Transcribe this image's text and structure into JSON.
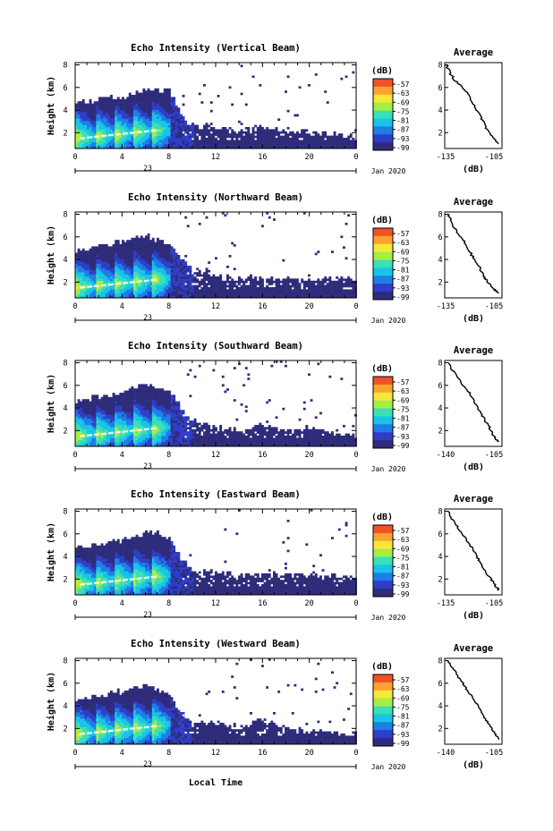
{
  "chart_data": {
    "type": "heatmap",
    "xlabel": "Local Time",
    "colorbar": {
      "unit": "(dB)",
      "ticks": [
        "-57",
        "-63",
        "-69",
        "-75",
        "-81",
        "-87",
        "-93",
        "-99"
      ],
      "vmin": -99,
      "vmax": -57,
      "colors": [
        "#2e2c7a",
        "#2e3ec8",
        "#1e7ee6",
        "#18c4e8",
        "#3ae0b6",
        "#a6ee44",
        "#f6e838",
        "#fba330",
        "#f05228"
      ]
    },
    "x_tick_labels": [
      "0",
      "4",
      "8",
      "12",
      "16",
      "20",
      "0"
    ],
    "x_ticks_hours": [
      0,
      4,
      8,
      12,
      16,
      20,
      24
    ],
    "date_label_day": "23",
    "date_label_month": "Jan 2020",
    "y_tick_labels": [
      "2",
      "4",
      "6",
      "8"
    ],
    "ylabel": "Height (km)",
    "panels": [
      {
        "title": "Echo Intensity (Vertical Beam)",
        "coverage": {
          "hours": [
            0,
            2,
            4,
            6,
            8,
            9,
            10,
            12,
            14,
            16,
            18,
            20,
            22,
            24
          ],
          "top_km": [
            4.7,
            5.1,
            5.3,
            6.0,
            5.8,
            3.5,
            2.6,
            2.5,
            2.4,
            2.5,
            2.2,
            2.1,
            2.0,
            1.7
          ]
        },
        "average": {
          "title": "Average",
          "xlabel": "(dB)",
          "xticks": [
            "-135",
            "-105"
          ],
          "xlim": [
            -135,
            -102
          ],
          "profile_km": [
            8.0,
            7.3,
            6.6,
            5.9,
            5.2,
            4.5,
            3.8,
            3.1,
            2.4,
            1.7,
            1.0
          ],
          "profile_db": [
            -134,
            -132,
            -129,
            -124,
            -121,
            -118,
            -116,
            -113,
            -111,
            -108,
            -104
          ]
        }
      },
      {
        "title": "Echo Intensity (Northward Beam)",
        "coverage": {
          "hours": [
            0,
            2,
            4,
            6,
            8,
            9,
            10,
            12,
            14,
            16,
            18,
            20,
            22,
            24
          ],
          "top_km": [
            4.8,
            5.3,
            5.7,
            6.2,
            5.5,
            4.1,
            3.2,
            2.6,
            2.4,
            2.5,
            2.3,
            2.3,
            2.4,
            2.3
          ]
        },
        "average": {
          "title": "Average",
          "xlabel": "(dB)",
          "xticks": [
            "-135",
            "-105"
          ],
          "xlim": [
            -135,
            -102
          ],
          "profile_km": [
            8.0,
            7.2,
            6.4,
            5.6,
            4.8,
            4.0,
            3.3,
            2.6,
            2.0,
            1.4,
            1.0
          ],
          "profile_db": [
            -133,
            -131,
            -128,
            -124,
            -121,
            -118,
            -115,
            -113,
            -110,
            -107,
            -104
          ]
        }
      },
      {
        "title": "Echo Intensity (Southward Beam)",
        "coverage": {
          "hours": [
            0,
            2,
            4,
            6,
            8,
            9,
            10,
            12,
            14,
            16,
            18,
            20,
            22,
            24
          ],
          "top_km": [
            4.7,
            5.1,
            5.6,
            6.1,
            5.6,
            4.0,
            3.0,
            2.3,
            2.2,
            2.6,
            2.0,
            2.3,
            1.8,
            1.6
          ]
        },
        "average": {
          "title": "Average",
          "xlabel": "(dB)",
          "xticks": [
            "-140",
            "-105"
          ],
          "xlim": [
            -140,
            -102
          ],
          "profile_km": [
            8.0,
            7.2,
            6.4,
            5.6,
            4.8,
            4.0,
            3.3,
            2.6,
            2.0,
            1.4,
            1.0
          ],
          "profile_db": [
            -138,
            -134,
            -130,
            -125,
            -121,
            -118,
            -115,
            -112,
            -109,
            -107,
            -104
          ]
        }
      },
      {
        "title": "Echo Intensity (Eastward Beam)",
        "coverage": {
          "hours": [
            0,
            2,
            4,
            6,
            8,
            9,
            10,
            12,
            14,
            16,
            18,
            20,
            22,
            24
          ],
          "top_km": [
            4.8,
            5.2,
            5.5,
            6.3,
            5.8,
            3.8,
            3.0,
            2.6,
            2.5,
            2.6,
            2.5,
            2.4,
            2.5,
            2.1
          ]
        },
        "average": {
          "title": "Average",
          "xlabel": "(dB)",
          "xticks": [
            "-135",
            "-105"
          ],
          "xlim": [
            -138,
            -102
          ],
          "profile_km": [
            8.0,
            7.2,
            6.4,
            5.6,
            4.8,
            4.0,
            3.3,
            2.6,
            2.0,
            1.4,
            1.0
          ],
          "profile_db": [
            -136,
            -133,
            -129,
            -125,
            -121,
            -118,
            -115,
            -112,
            -109,
            -106,
            -104
          ]
        }
      },
      {
        "title": "Echo Intensity (Westward Beam)",
        "coverage": {
          "hours": [
            0,
            2,
            4,
            6,
            8,
            9,
            10,
            12,
            14,
            16,
            18,
            20,
            22,
            24
          ],
          "top_km": [
            4.5,
            5.0,
            5.4,
            5.9,
            5.1,
            3.4,
            2.6,
            2.4,
            2.3,
            2.8,
            2.0,
            1.9,
            1.8,
            1.6
          ]
        },
        "average": {
          "title": "Average",
          "xlabel": "(dB)",
          "xticks": [
            "-140",
            "-105"
          ],
          "xlim": [
            -140,
            -102
          ],
          "profile_km": [
            8.0,
            7.2,
            6.4,
            5.6,
            4.8,
            4.0,
            3.3,
            2.6,
            2.0,
            1.4,
            1.0
          ],
          "profile_db": [
            -138,
            -134,
            -130,
            -126,
            -122,
            -118,
            -115,
            -112,
            -109,
            -106,
            -104
          ]
        }
      }
    ]
  }
}
